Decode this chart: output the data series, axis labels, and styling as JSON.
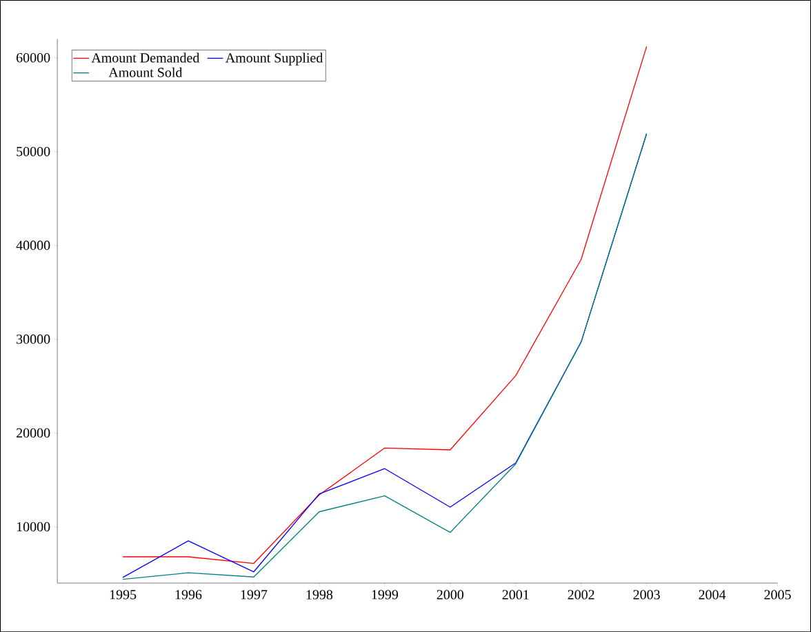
{
  "chart_data": {
    "type": "line",
    "x": [
      1995,
      1996,
      1997,
      1998,
      1999,
      2000,
      2001,
      2002,
      2003
    ],
    "series": [
      {
        "name": "Amount Demanded",
        "color": "#ff0000",
        "values": [
          6800,
          6800,
          6100,
          13400,
          18400,
          18200,
          26100,
          38500,
          61200
        ]
      },
      {
        "name": "Amount Supplied",
        "color": "#0000ff",
        "values": [
          4600,
          8500,
          5200,
          13500,
          16200,
          12100,
          16800,
          29700,
          51900
        ]
      },
      {
        "name": "Amount Sold",
        "color": "#008080",
        "values": [
          4400,
          5100,
          4650,
          11600,
          13300,
          9400,
          16700,
          29700,
          51900
        ]
      }
    ],
    "xlim": [
      1994,
      2005
    ],
    "ylim": [
      4000,
      62000
    ],
    "xticks": [
      1995,
      1996,
      1997,
      1998,
      1999,
      2000,
      2001,
      2002,
      2003,
      2004,
      2005
    ],
    "yticks": [
      10000,
      20000,
      30000,
      40000,
      50000,
      60000
    ],
    "legend": "top left",
    "grid": false,
    "marker": "none",
    "line_style": "solid"
  }
}
